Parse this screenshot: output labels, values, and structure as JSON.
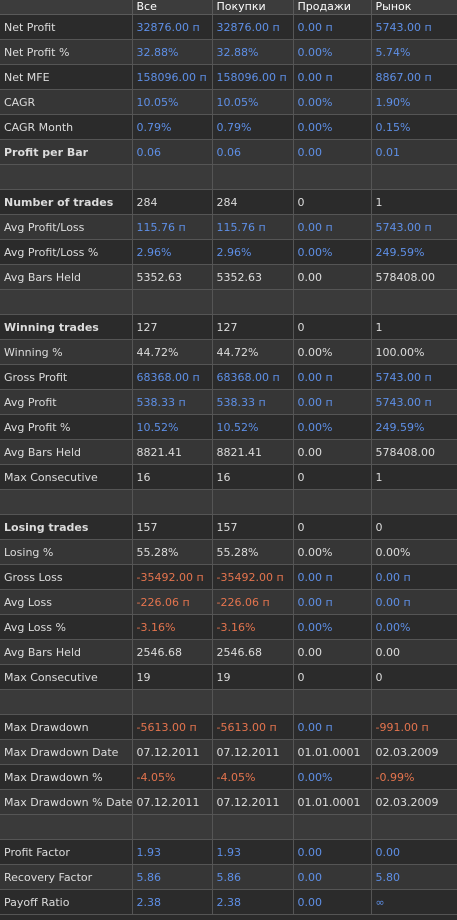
{
  "headers": [
    "",
    "Все",
    "Покупки",
    "Продажи",
    "Рынок"
  ],
  "rows": [
    {
      "label": "Net Profit",
      "bold": false,
      "cells": [
        [
          "32876.00 п",
          "pos"
        ],
        [
          "32876.00 п",
          "pos"
        ],
        [
          "0.00 п",
          "pos"
        ],
        [
          "5743.00 п",
          "pos"
        ]
      ]
    },
    {
      "label": "Net Profit %",
      "bold": false,
      "cells": [
        [
          "32.88%",
          "pos"
        ],
        [
          "32.88%",
          "pos"
        ],
        [
          "0.00%",
          "pos"
        ],
        [
          "5.74%",
          "pos"
        ]
      ]
    },
    {
      "label": "Net MFE",
      "bold": false,
      "cells": [
        [
          "158096.00 п",
          "pos"
        ],
        [
          "158096.00 п",
          "pos"
        ],
        [
          "0.00 п",
          "pos"
        ],
        [
          "8867.00 п",
          "pos"
        ]
      ]
    },
    {
      "label": "CAGR",
      "bold": false,
      "cells": [
        [
          "10.05%",
          "pos"
        ],
        [
          "10.05%",
          "pos"
        ],
        [
          "0.00%",
          "pos"
        ],
        [
          "1.90%",
          "pos"
        ]
      ]
    },
    {
      "label": "CAGR Month",
      "bold": false,
      "cells": [
        [
          "0.79%",
          "pos"
        ],
        [
          "0.79%",
          "pos"
        ],
        [
          "0.00%",
          "pos"
        ],
        [
          "0.15%",
          "pos"
        ]
      ]
    },
    {
      "label": "Profit per Bar",
      "bold": true,
      "cells": [
        [
          "0.06",
          "pos"
        ],
        [
          "0.06",
          "pos"
        ],
        [
          "0.00",
          "pos"
        ],
        [
          "0.01",
          "pos"
        ]
      ]
    },
    {
      "blank": true
    },
    {
      "label": "Number of trades",
      "bold": true,
      "cells": [
        [
          "284",
          "neu"
        ],
        [
          "284",
          "neu"
        ],
        [
          "0",
          "neu"
        ],
        [
          "1",
          "neu"
        ]
      ]
    },
    {
      "label": "Avg Profit/Loss",
      "bold": false,
      "cells": [
        [
          "115.76 п",
          "pos"
        ],
        [
          "115.76 п",
          "pos"
        ],
        [
          "0.00 п",
          "pos"
        ],
        [
          "5743.00 п",
          "pos"
        ]
      ]
    },
    {
      "label": "Avg Profit/Loss %",
      "bold": false,
      "cells": [
        [
          "2.96%",
          "pos"
        ],
        [
          "2.96%",
          "pos"
        ],
        [
          "0.00%",
          "pos"
        ],
        [
          "249.59%",
          "pos"
        ]
      ]
    },
    {
      "label": "Avg Bars Held",
      "bold": false,
      "cells": [
        [
          "5352.63",
          "neu"
        ],
        [
          "5352.63",
          "neu"
        ],
        [
          "0.00",
          "neu"
        ],
        [
          "578408.00",
          "neu"
        ]
      ]
    },
    {
      "blank": true
    },
    {
      "label": "Winning trades",
      "bold": true,
      "cells": [
        [
          "127",
          "neu"
        ],
        [
          "127",
          "neu"
        ],
        [
          "0",
          "neu"
        ],
        [
          "1",
          "neu"
        ]
      ]
    },
    {
      "label": "Winning %",
      "bold": false,
      "cells": [
        [
          "44.72%",
          "neu"
        ],
        [
          "44.72%",
          "neu"
        ],
        [
          "0.00%",
          "neu"
        ],
        [
          "100.00%",
          "neu"
        ]
      ]
    },
    {
      "label": "Gross Profit",
      "bold": false,
      "cells": [
        [
          "68368.00 п",
          "pos"
        ],
        [
          "68368.00 п",
          "pos"
        ],
        [
          "0.00 п",
          "pos"
        ],
        [
          "5743.00 п",
          "pos"
        ]
      ]
    },
    {
      "label": "Avg Profit",
      "bold": false,
      "cells": [
        [
          "538.33 п",
          "pos"
        ],
        [
          "538.33 п",
          "pos"
        ],
        [
          "0.00 п",
          "pos"
        ],
        [
          "5743.00 п",
          "pos"
        ]
      ]
    },
    {
      "label": "Avg Profit %",
      "bold": false,
      "cells": [
        [
          "10.52%",
          "pos"
        ],
        [
          "10.52%",
          "pos"
        ],
        [
          "0.00%",
          "pos"
        ],
        [
          "249.59%",
          "pos"
        ]
      ]
    },
    {
      "label": "Avg Bars Held",
      "bold": false,
      "cells": [
        [
          "8821.41",
          "neu"
        ],
        [
          "8821.41",
          "neu"
        ],
        [
          "0.00",
          "neu"
        ],
        [
          "578408.00",
          "neu"
        ]
      ]
    },
    {
      "label": "Max Consecutive",
      "bold": false,
      "cells": [
        [
          "16",
          "neu"
        ],
        [
          "16",
          "neu"
        ],
        [
          "0",
          "neu"
        ],
        [
          "1",
          "neu"
        ]
      ]
    },
    {
      "blank": true
    },
    {
      "label": "Losing trades",
      "bold": true,
      "cells": [
        [
          "157",
          "neu"
        ],
        [
          "157",
          "neu"
        ],
        [
          "0",
          "neu"
        ],
        [
          "0",
          "neu"
        ]
      ]
    },
    {
      "label": "Losing %",
      "bold": false,
      "cells": [
        [
          "55.28%",
          "neu"
        ],
        [
          "55.28%",
          "neu"
        ],
        [
          "0.00%",
          "neu"
        ],
        [
          "0.00%",
          "neu"
        ]
      ]
    },
    {
      "label": "Gross Loss",
      "bold": false,
      "cells": [
        [
          "-35492.00 п",
          "neg"
        ],
        [
          "-35492.00 п",
          "neg"
        ],
        [
          "0.00 п",
          "pos"
        ],
        [
          "0.00 п",
          "pos"
        ]
      ]
    },
    {
      "label": "Avg Loss",
      "bold": false,
      "cells": [
        [
          "-226.06 п",
          "neg"
        ],
        [
          "-226.06 п",
          "neg"
        ],
        [
          "0.00 п",
          "pos"
        ],
        [
          "0.00 п",
          "pos"
        ]
      ]
    },
    {
      "label": "Avg Loss %",
      "bold": false,
      "cells": [
        [
          "-3.16%",
          "neg"
        ],
        [
          "-3.16%",
          "neg"
        ],
        [
          "0.00%",
          "pos"
        ],
        [
          "0.00%",
          "pos"
        ]
      ]
    },
    {
      "label": "Avg Bars Held",
      "bold": false,
      "cells": [
        [
          "2546.68",
          "neu"
        ],
        [
          "2546.68",
          "neu"
        ],
        [
          "0.00",
          "neu"
        ],
        [
          "0.00",
          "neu"
        ]
      ]
    },
    {
      "label": "Max Consecutive",
      "bold": false,
      "cells": [
        [
          "19",
          "neu"
        ],
        [
          "19",
          "neu"
        ],
        [
          "0",
          "neu"
        ],
        [
          "0",
          "neu"
        ]
      ]
    },
    {
      "blank": true
    },
    {
      "label": "Max Drawdown",
      "bold": false,
      "cells": [
        [
          "-5613.00 п",
          "neg"
        ],
        [
          "-5613.00 п",
          "neg"
        ],
        [
          "0.00 п",
          "pos"
        ],
        [
          "-991.00 п",
          "neg"
        ]
      ]
    },
    {
      "label": "Max Drawdown Date",
      "bold": false,
      "cells": [
        [
          "07.12.2011",
          "neu"
        ],
        [
          "07.12.2011",
          "neu"
        ],
        [
          "01.01.0001",
          "neu"
        ],
        [
          "02.03.2009",
          "neu"
        ]
      ]
    },
    {
      "label": "Max Drawdown %",
      "bold": false,
      "cells": [
        [
          "-4.05%",
          "neg"
        ],
        [
          "-4.05%",
          "neg"
        ],
        [
          "0.00%",
          "pos"
        ],
        [
          "-0.99%",
          "neg"
        ]
      ]
    },
    {
      "label": "Max Drawdown % Date",
      "bold": false,
      "cells": [
        [
          "07.12.2011",
          "neu"
        ],
        [
          "07.12.2011",
          "neu"
        ],
        [
          "01.01.0001",
          "neu"
        ],
        [
          "02.03.2009",
          "neu"
        ]
      ]
    },
    {
      "blank": true
    },
    {
      "label": "Profit Factor",
      "bold": false,
      "cells": [
        [
          "1.93",
          "pos"
        ],
        [
          "1.93",
          "pos"
        ],
        [
          "0.00",
          "pos"
        ],
        [
          "0.00",
          "pos"
        ]
      ]
    },
    {
      "label": "Recovery Factor",
      "bold": false,
      "cells": [
        [
          "5.86",
          "pos"
        ],
        [
          "5.86",
          "pos"
        ],
        [
          "0.00",
          "pos"
        ],
        [
          "5.80",
          "pos"
        ]
      ]
    },
    {
      "label": "Payoff Ratio",
      "bold": false,
      "cells": [
        [
          "2.38",
          "pos"
        ],
        [
          "2.38",
          "pos"
        ],
        [
          "0.00",
          "pos"
        ],
        [
          "∞",
          "pos"
        ]
      ]
    }
  ]
}
